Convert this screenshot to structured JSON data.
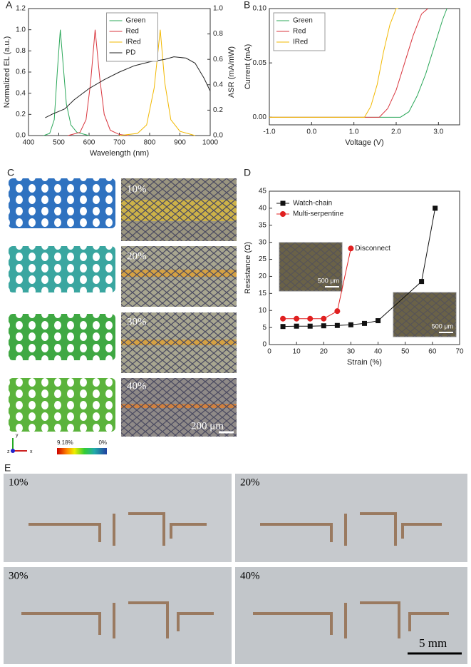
{
  "chart_data": [
    {
      "type": "line",
      "panel_label": "A",
      "xlabel": "Wavelength (nm)",
      "ylabel": "Normalized EL (a.u.)",
      "y2label": "ASR (mA/mW)",
      "xlim": [
        400,
        1000
      ],
      "xticks": [
        400,
        500,
        600,
        700,
        800,
        900,
        1000
      ],
      "ylim": [
        0,
        1.2
      ],
      "yticks": [
        {
          "value": 0,
          "label": "0.0"
        },
        0.2,
        0.4,
        0.6,
        0.8,
        {
          "value": 1,
          "label": "1.0"
        },
        1.2
      ],
      "y2lim": [
        0,
        1.0
      ],
      "y2ticks": [
        {
          "value": 0,
          "label": "0.0"
        },
        0.2,
        0.4,
        0.6,
        0.8,
        {
          "value": 1,
          "label": "1.0"
        }
      ],
      "legend": "upper center",
      "series": [
        {
          "name": "Green",
          "color": "#2ca85a",
          "x": [
            450,
            470,
            485,
            495,
            505,
            515,
            525,
            540,
            560,
            600
          ],
          "values": [
            0,
            0.02,
            0.15,
            0.6,
            1.0,
            0.65,
            0.3,
            0.1,
            0.03,
            0
          ]
        },
        {
          "name": "Red",
          "color": "#d9363e",
          "x": [
            530,
            570,
            590,
            605,
            620,
            635,
            650,
            670,
            700,
            730
          ],
          "values": [
            0,
            0.03,
            0.15,
            0.5,
            1.0,
            0.55,
            0.2,
            0.05,
            0.01,
            0
          ]
        },
        {
          "name": "IRed",
          "color": "#f2b800",
          "x": [
            700,
            760,
            790,
            815,
            835,
            850,
            870,
            900,
            950
          ],
          "values": [
            0,
            0.02,
            0.1,
            0.45,
            1.0,
            0.5,
            0.15,
            0.04,
            0
          ]
        },
        {
          "name": "PD",
          "color": "#222222",
          "axis": "y2",
          "x": [
            455,
            480,
            500,
            520,
            550,
            600,
            650,
            700,
            750,
            800,
            850,
            880,
            920,
            950,
            980,
            1000
          ],
          "values": [
            0.14,
            0.17,
            0.19,
            0.21,
            0.28,
            0.37,
            0.44,
            0.5,
            0.55,
            0.58,
            0.6,
            0.62,
            0.61,
            0.57,
            0.45,
            0.35
          ]
        }
      ]
    },
    {
      "type": "line",
      "panel_label": "B",
      "xlabel": "Voltage (V)",
      "ylabel": "Current (mA)",
      "xlim": [
        -1.0,
        3.5
      ],
      "xticks": [
        {
          "value": -1,
          "label": "-1.0"
        },
        {
          "value": 0,
          "label": "0.0"
        },
        {
          "value": 1,
          "label": "1.0"
        },
        {
          "value": 2,
          "label": "2.0"
        },
        {
          "value": 3,
          "label": "3.0"
        }
      ],
      "ylim": [
        -0.007,
        0.1
      ],
      "yticks": [
        {
          "value": 0,
          "label": "0.00"
        },
        0.05,
        {
          "value": 0.1,
          "label": "0.10"
        }
      ],
      "legend": "upper left",
      "series": [
        {
          "name": "Green",
          "color": "#2ca85a",
          "x": [
            -1,
            2.1,
            2.3,
            2.5,
            2.7,
            2.9,
            3.1,
            3.2
          ],
          "values": [
            0,
            0,
            0.005,
            0.02,
            0.04,
            0.065,
            0.09,
            0.1
          ]
        },
        {
          "name": "Red",
          "color": "#d9363e",
          "x": [
            -1,
            1.6,
            1.8,
            2.0,
            2.2,
            2.4,
            2.6,
            2.75
          ],
          "values": [
            0,
            0,
            0.008,
            0.025,
            0.05,
            0.075,
            0.095,
            0.1
          ]
        },
        {
          "name": "IRed",
          "color": "#f2b800",
          "x": [
            -1,
            1.25,
            1.4,
            1.55,
            1.7,
            1.85,
            2.0,
            2.05
          ],
          "values": [
            0,
            0,
            0.01,
            0.03,
            0.06,
            0.085,
            0.1,
            0.1
          ]
        }
      ]
    },
    {
      "type": "line",
      "panel_label": "D",
      "xlabel": "Strain (%)",
      "ylabel": "Resistance (Ω)",
      "xlim": [
        0,
        70
      ],
      "xticks": [
        0,
        10,
        20,
        30,
        40,
        50,
        60,
        70
      ],
      "ylim": [
        0,
        45
      ],
      "yticks": [
        0,
        5,
        10,
        15,
        20,
        25,
        30,
        35,
        40,
        45
      ],
      "legend": "upper left",
      "annotations": [
        "Disconnect"
      ],
      "inset_labels": [
        "500 μm",
        "500 μm"
      ],
      "series": [
        {
          "name": "Watch-chain",
          "color": "#111111",
          "marker": "square",
          "x": [
            5,
            10,
            15,
            20,
            25,
            30,
            35,
            40,
            56,
            61
          ],
          "values": [
            5.3,
            5.4,
            5.4,
            5.5,
            5.6,
            5.8,
            6.2,
            7,
            18.5,
            40
          ]
        },
        {
          "name": "Multi-serpentine",
          "color": "#e02020",
          "marker": "circle",
          "x": [
            5,
            10,
            15,
            20,
            25,
            30
          ],
          "values": [
            7.6,
            7.6,
            7.6,
            7.6,
            9.8,
            28.2
          ]
        }
      ]
    }
  ],
  "panel_c": {
    "label": "C",
    "strains": [
      "10%",
      "20%",
      "30%",
      "40%"
    ],
    "scale_bar": "200 μm",
    "colorbar": [
      "9.18%",
      "0%"
    ],
    "axes": [
      "y",
      "x",
      "z"
    ]
  },
  "panel_e": {
    "label": "E",
    "strains": [
      "10%",
      "20%",
      "30%",
      "40%"
    ],
    "scale_bar": "5 mm"
  }
}
